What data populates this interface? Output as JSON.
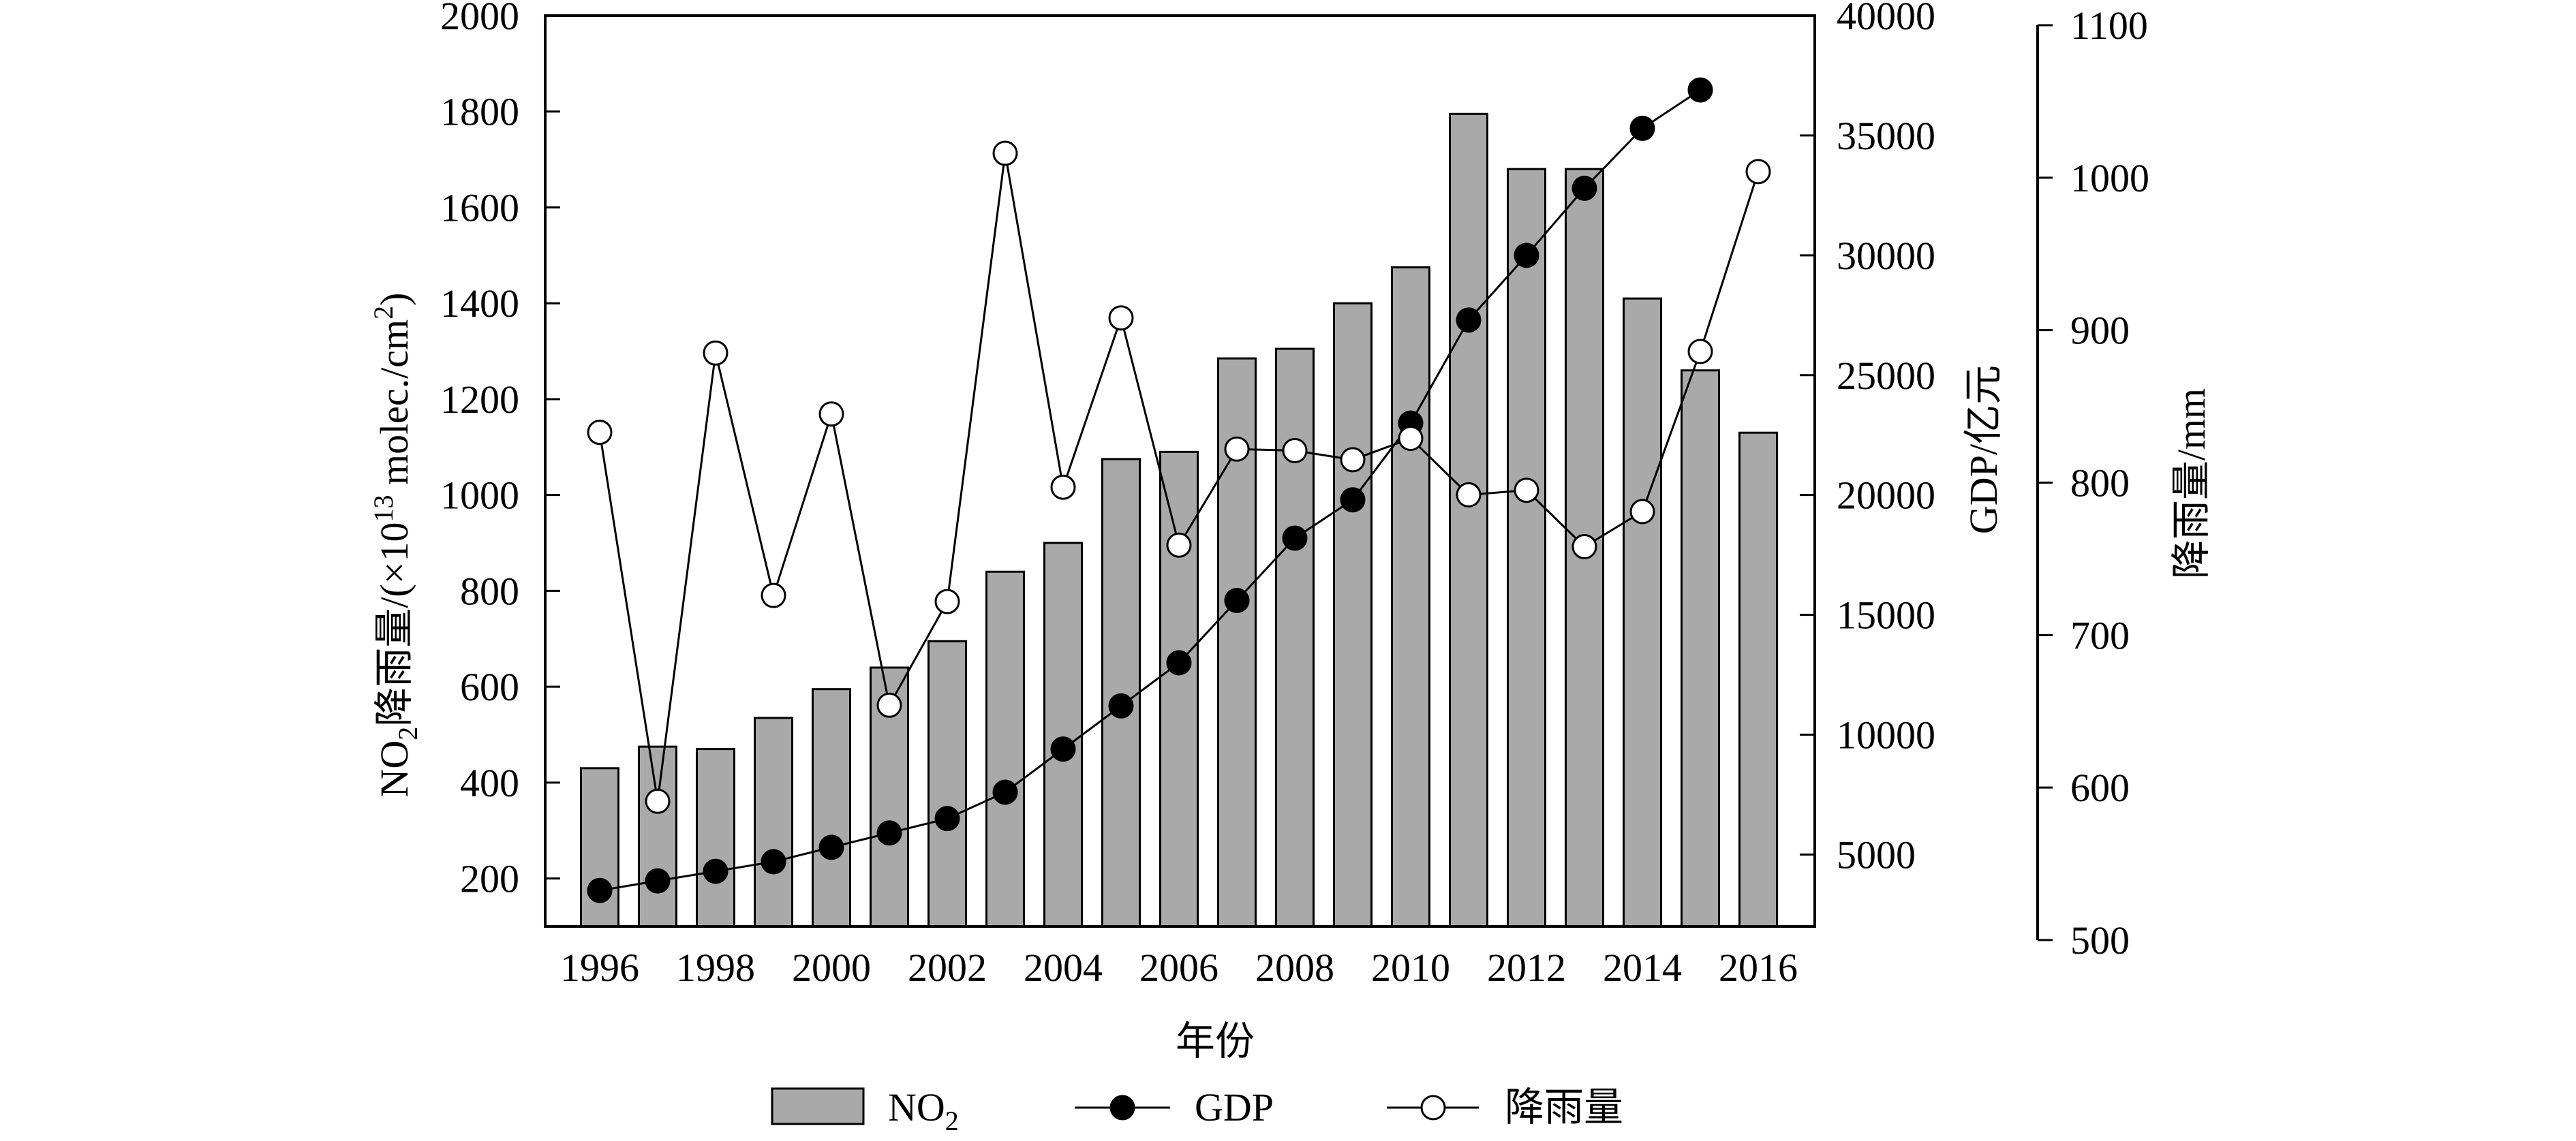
{
  "chart_data": {
    "type": "bar",
    "xlabel": "年份",
    "x_tick_labels": [
      "1996",
      "1998",
      "2000",
      "2002",
      "2004",
      "2006",
      "2008",
      "2010",
      "2012",
      "2014",
      "2016"
    ],
    "years": [
      1996,
      1997,
      1998,
      1999,
      2000,
      2001,
      2002,
      2003,
      2004,
      2005,
      2006,
      2007,
      2008,
      2009,
      2010,
      2011,
      2012,
      2013,
      2014,
      2015,
      2016
    ],
    "axes": {
      "left": {
        "label_parts": {
          "a": "NO",
          "sub": "2",
          "b": "降雨量/(×10",
          "sup": "13",
          "c": " molec./cm",
          "sup2": "2",
          "d": ")"
        },
        "ylim": [
          100,
          2000
        ],
        "ticks": [
          200,
          400,
          600,
          800,
          1000,
          1200,
          1400,
          1600,
          1800,
          2000
        ]
      },
      "right_gdp": {
        "label": "GDP/亿元",
        "ylim": [
          2000,
          40000
        ],
        "ticks": [
          5000,
          10000,
          15000,
          20000,
          25000,
          30000,
          35000,
          40000
        ]
      },
      "right_rain": {
        "label": "降雨量/mm",
        "ylim": [
          500,
          1100
        ],
        "ticks": [
          500,
          600,
          700,
          800,
          900,
          1000,
          1100
        ]
      }
    },
    "series": [
      {
        "name": "NO2",
        "legend_main": "NO",
        "legend_sub": "2",
        "type": "bar",
        "axis": "left",
        "color": "#a9a9a9",
        "values": [
          430,
          475,
          470,
          535,
          595,
          640,
          695,
          840,
          900,
          1075,
          1090,
          1285,
          1305,
          1400,
          1475,
          1795,
          1680,
          1680,
          1410,
          1260,
          1130
        ]
      },
      {
        "name": "GDP",
        "legend": "GDP",
        "type": "line",
        "axis": "right_gdp",
        "marker": "filled",
        "values": [
          3500,
          3900,
          4300,
          4700,
          5300,
          5900,
          6500,
          7600,
          9400,
          11200,
          13000,
          15600,
          18200,
          19800,
          23000,
          27300,
          30000,
          32800,
          35300,
          36900,
          null
        ]
      },
      {
        "name": "降雨量",
        "legend": "降雨量",
        "type": "line",
        "axis": "right_rain",
        "marker": "hollow",
        "values": [
          833,
          591,
          885,
          726,
          845,
          654,
          722,
          1016,
          797,
          908,
          759,
          822,
          821,
          815,
          829,
          792,
          795,
          758,
          781,
          886,
          1004
        ]
      }
    ]
  }
}
